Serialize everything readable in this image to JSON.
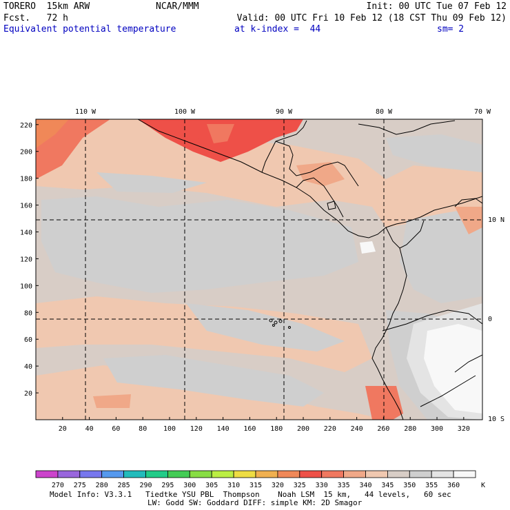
{
  "header": {
    "model": "TORERO  15km ARW",
    "center": "NCAR/MMM",
    "init": "Init: 00 UTC Tue 07 Feb 12",
    "fcst": "Fcst.   72 h",
    "valid": "Valid: 00 UTC Fri 10 Feb 12 (18 CST Thu 09 Feb 12)",
    "field": "Equivalent potential temperature",
    "level": "at k-index =  44",
    "smooth": "sm= 2"
  },
  "map": {
    "lon_labels": [
      "110 W",
      "100 W",
      "90 W",
      "80 W",
      "70 W"
    ],
    "lat_labels": [
      "10 N",
      "0",
      "10 S"
    ],
    "y_ticks": [
      20,
      40,
      60,
      80,
      100,
      120,
      140,
      160,
      180,
      200,
      220
    ],
    "x_ticks": [
      20,
      40,
      60,
      80,
      100,
      120,
      140,
      160,
      180,
      200,
      220,
      240,
      260,
      280,
      300,
      320
    ]
  },
  "colorbar": {
    "levels": [
      "270",
      "275",
      "280",
      "285",
      "290",
      "295",
      "300",
      "305",
      "310",
      "315",
      "320",
      "325",
      "330",
      "335",
      "340",
      "345",
      "350",
      "355",
      "360"
    ],
    "unit": "K",
    "colors": [
      "#cc44cc",
      "#9966dd",
      "#7777ee",
      "#5599ee",
      "#22bbbb",
      "#22cc88",
      "#44cc55",
      "#88dd44",
      "#bbee44",
      "#eedd44",
      "#f0b050",
      "#f08858",
      "#ee5048",
      "#f07860",
      "#f0a888",
      "#f0c8b0",
      "#d8cdc6",
      "#cfcfcf",
      "#e4e4e4",
      "#f8f8f8"
    ]
  },
  "footer": {
    "line1": "Model Info: V3.3.1   Tiedtke YSU PBL  Thompson    Noah LSM  15 km,   44 levels,   60 sec",
    "line2": "LW: Godd SW: Goddard DIFF: simple KM: 2D Smagor"
  }
}
